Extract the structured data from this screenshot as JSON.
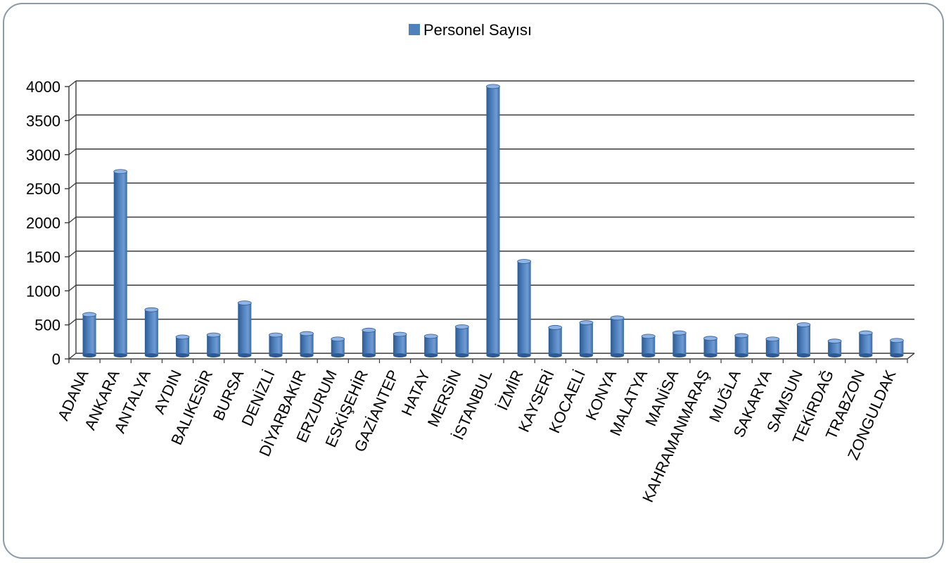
{
  "chart_data": {
    "type": "bar",
    "title": "",
    "xlabel": "",
    "ylabel": "",
    "legend": {
      "position": "top-center",
      "entries": [
        "Personel Sayısı"
      ]
    },
    "grid": true,
    "ylim": [
      0,
      4000
    ],
    "yticks": [
      0,
      500,
      1000,
      1500,
      2000,
      2500,
      3000,
      3500,
      4000
    ],
    "categories": [
      "ADANA",
      "ANKARA",
      "ANTALYA",
      "AYDIN",
      "BALIKESİR",
      "BURSA",
      "DENİZLİ",
      "DİYARBAKIR",
      "ERZURUM",
      "ESKİŞEHİR",
      "GAZİANTEP",
      "HATAY",
      "MERSİN",
      "İSTANBUL",
      "İZMİR",
      "KAYSERİ",
      "KOCAELİ",
      "KONYA",
      "MALATYA",
      "MANİSA",
      "KAHRAMANMARAŞ",
      "MUĞLA",
      "SAKARYA",
      "SAMSUN",
      "TEKİRDAĞ",
      "TRABZON",
      "ZONGULDAK"
    ],
    "series": [
      {
        "name": "Personel Sayısı",
        "color": "#4f81bd",
        "values": [
          600,
          2700,
          670,
          270,
          300,
          770,
          300,
          320,
          240,
          370,
          310,
          280,
          420,
          3950,
          1380,
          410,
          480,
          550,
          280,
          330,
          250,
          290,
          240,
          450,
          210,
          330,
          220
        ]
      }
    ]
  }
}
